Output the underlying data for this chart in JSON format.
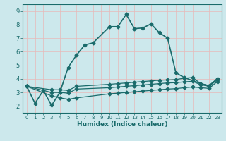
{
  "xlabel": "Humidex (Indice chaleur)",
  "ylabel": "",
  "xlim": [
    -0.5,
    23.5
  ],
  "ylim": [
    1.5,
    9.5
  ],
  "xticks": [
    0,
    1,
    2,
    3,
    4,
    5,
    6,
    7,
    8,
    9,
    10,
    11,
    12,
    13,
    14,
    15,
    16,
    17,
    18,
    19,
    20,
    21,
    22,
    23
  ],
  "yticks": [
    2,
    3,
    4,
    5,
    6,
    7,
    8,
    9
  ],
  "bg_color": "#cce8ec",
  "line_color": "#1a6b6b",
  "grid_color": "#e8b8b8",
  "lines": [
    {
      "x": [
        0,
        1,
        2,
        3,
        4,
        5,
        6,
        7,
        8,
        10,
        11,
        12,
        13,
        14,
        15,
        16,
        17,
        18,
        19,
        21,
        22,
        23
      ],
      "y": [
        3.45,
        2.2,
        3.15,
        2.05,
        3.0,
        4.85,
        5.75,
        6.5,
        6.65,
        7.85,
        7.85,
        8.75,
        7.7,
        7.75,
        8.05,
        7.4,
        7.0,
        4.45,
        4.1,
        3.65,
        3.5,
        4.0
      ],
      "marker": "D",
      "markersize": 2.5,
      "linewidth": 1.2
    },
    {
      "x": [
        0,
        3,
        4,
        5,
        6,
        10,
        11,
        12,
        13,
        14,
        15,
        16,
        17,
        18,
        19,
        20,
        21,
        22,
        23
      ],
      "y": [
        3.45,
        3.2,
        3.2,
        3.15,
        3.45,
        3.6,
        3.65,
        3.7,
        3.75,
        3.8,
        3.85,
        3.9,
        3.92,
        3.95,
        4.05,
        4.1,
        3.65,
        3.5,
        4.0
      ],
      "marker": "D",
      "markersize": 2.5,
      "linewidth": 0.9
    },
    {
      "x": [
        0,
        3,
        4,
        5,
        6,
        10,
        11,
        12,
        13,
        14,
        15,
        16,
        17,
        18,
        19,
        20,
        21,
        22,
        23
      ],
      "y": [
        3.45,
        3.0,
        3.0,
        2.95,
        3.25,
        3.35,
        3.4,
        3.45,
        3.5,
        3.55,
        3.6,
        3.65,
        3.7,
        3.72,
        3.78,
        3.82,
        3.57,
        3.45,
        3.92
      ],
      "marker": "D",
      "markersize": 2.5,
      "linewidth": 0.9
    },
    {
      "x": [
        0,
        3,
        4,
        5,
        6,
        10,
        11,
        12,
        13,
        14,
        15,
        16,
        17,
        18,
        19,
        20,
        21,
        22,
        23
      ],
      "y": [
        3.45,
        2.75,
        2.6,
        2.5,
        2.6,
        2.9,
        2.95,
        3.0,
        3.05,
        3.1,
        3.15,
        3.2,
        3.25,
        3.28,
        3.35,
        3.4,
        3.35,
        3.3,
        3.8
      ],
      "marker": "D",
      "markersize": 2.5,
      "linewidth": 0.9
    }
  ]
}
